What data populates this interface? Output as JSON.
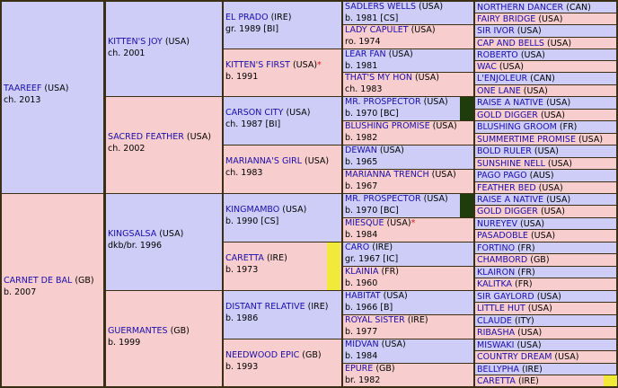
{
  "colors": {
    "male": "#cdcdf7",
    "female": "#f7cdcd",
    "link": "#1a0dab",
    "border": "#3a2f14",
    "dark_marker": "#1f3d0c",
    "yellow_marker": "#f2ea3a",
    "star": "#d21a1a"
  },
  "g1": [
    {
      "name": "TAAREEF",
      "tail": "(USA)",
      "info": "ch. 2013"
    },
    {
      "name": "CARNET DE BAL",
      "tail": "(GB)",
      "info": "b. 2007"
    }
  ],
  "g2": [
    {
      "name": "KITTEN'S JOY",
      "tail": "(USA)",
      "info": "ch. 2001"
    },
    {
      "name": "SACRED FEATHER",
      "tail": "(USA)",
      "info": "ch. 2002"
    },
    {
      "name": "KINGSALSA",
      "tail": "(USA)",
      "info": "dkb/br. 1996"
    },
    {
      "name": "GUERMANTES",
      "tail": "(GB)",
      "info": "b. 1999"
    }
  ],
  "g3": [
    {
      "name": "EL PRADO",
      "tail": "(IRE)",
      "info": "gr. 1989 [BI]"
    },
    {
      "name": "KITTEN'S FIRST",
      "tail": "(USA)",
      "mark": "*",
      "info": "b. 1991"
    },
    {
      "name": "CARSON CITY",
      "tail": "(USA)",
      "info": "ch. 1987 [BI]"
    },
    {
      "name": "MARIANNA'S GIRL",
      "tail": "(USA)",
      "info": "ch. 1983"
    },
    {
      "name": "KINGMAMBO",
      "tail": "(USA)",
      "info": "b. 1990 [CS]"
    },
    {
      "name": "CARETTA",
      "tail": "(IRE)",
      "info": "b. 1973"
    },
    {
      "name": "DISTANT RELATIVE",
      "tail": "(IRE)",
      "info": "b. 1986"
    },
    {
      "name": "NEEDWOOD EPIC",
      "tail": "(GB)",
      "info": "b. 1993"
    }
  ],
  "g4": [
    {
      "name": "SADLERS WELLS",
      "tail": "(USA)",
      "info": "b. 1981 [CS]"
    },
    {
      "name": "LADY CAPULET",
      "tail": "(USA)",
      "info": "ro. 1974"
    },
    {
      "name": "LEAR FAN",
      "tail": "(USA)",
      "info": "b. 1981"
    },
    {
      "name": "THAT'S MY HON",
      "tail": "(USA)",
      "info": "ch. 1983"
    },
    {
      "name": "MR. PROSPECTOR",
      "tail": "(USA)",
      "info": "b. 1970 [BC]"
    },
    {
      "name": "BLUSHING PROMISE",
      "tail": "(USA)",
      "info": "b. 1982"
    },
    {
      "name": "DEWAN",
      "tail": "(USA)",
      "info": "b. 1965"
    },
    {
      "name": "MARIANNA TRENCH",
      "tail": "(USA)",
      "info": "b. 1967"
    },
    {
      "name": "MR. PROSPECTOR",
      "tail": "(USA)",
      "info": "b. 1970 [BC]"
    },
    {
      "name": "MIESQUE",
      "tail": "(USA)",
      "mark": "*",
      "info": "b. 1984"
    },
    {
      "name": "CARO",
      "tail": "(IRE)",
      "info": "gr. 1967 [IC]"
    },
    {
      "name": "KLAINIA",
      "tail": "(FR)",
      "info": "b. 1960"
    },
    {
      "name": "HABITAT",
      "tail": "(USA)",
      "info": "b. 1966 [B]"
    },
    {
      "name": "ROYAL SISTER",
      "tail": "(IRE)",
      "info": "b. 1977"
    },
    {
      "name": "MIDVAN",
      "tail": "(USA)",
      "info": "b. 1984"
    },
    {
      "name": "EPURE",
      "tail": "(GB)",
      "info": "br. 1982"
    }
  ],
  "g5": [
    {
      "name": "NORTHERN DANCER",
      "tail": "(CAN)"
    },
    {
      "name": "FAIRY BRIDGE",
      "tail": "(USA)"
    },
    {
      "name": "SIR IVOR",
      "tail": "(USA)"
    },
    {
      "name": "CAP AND BELLS",
      "tail": "(USA)"
    },
    {
      "name": "ROBERTO",
      "tail": "(USA)"
    },
    {
      "name": "WAC",
      "tail": "(USA)"
    },
    {
      "name": "L'ENJOLEUR",
      "tail": "(CAN)"
    },
    {
      "name": "ONE LANE",
      "tail": "(USA)"
    },
    {
      "name": "RAISE A NATIVE",
      "tail": "(USA)"
    },
    {
      "name": "GOLD DIGGER",
      "tail": "(USA)"
    },
    {
      "name": "BLUSHING GROOM",
      "tail": "(FR)"
    },
    {
      "name": "SUMMERTIME PROMISE",
      "tail": "(USA)"
    },
    {
      "name": "BOLD RULER",
      "tail": "(USA)"
    },
    {
      "name": "SUNSHINE NELL",
      "tail": "(USA)"
    },
    {
      "name": "PAGO PAGO",
      "tail": "(AUS)"
    },
    {
      "name": "FEATHER BED",
      "tail": "(USA)"
    },
    {
      "name": "RAISE A NATIVE",
      "tail": "(USA)"
    },
    {
      "name": "GOLD DIGGER",
      "tail": "(USA)"
    },
    {
      "name": "NUREYEV",
      "tail": "(USA)"
    },
    {
      "name": "PASADOBLE",
      "tail": "(USA)"
    },
    {
      "name": "FORTINO",
      "tail": "(FR)"
    },
    {
      "name": "CHAMBORD",
      "tail": "(GB)"
    },
    {
      "name": "KLAIRON",
      "tail": "(FR)"
    },
    {
      "name": "KALITKA",
      "tail": "(FR)"
    },
    {
      "name": "SIR GAYLORD",
      "tail": "(USA)"
    },
    {
      "name": "LITTLE HUT",
      "tail": "(USA)"
    },
    {
      "name": "CLAUDE",
      "tail": "(ITY)"
    },
    {
      "name": "RIBASHA",
      "tail": "(USA)"
    },
    {
      "name": "MISWAKI",
      "tail": "(USA)"
    },
    {
      "name": "COUNTRY DREAM",
      "tail": "(USA)"
    },
    {
      "name": "BELLYPHA",
      "tail": "(IRE)"
    },
    {
      "name": "CARETTA",
      "tail": "(IRE)"
    }
  ]
}
